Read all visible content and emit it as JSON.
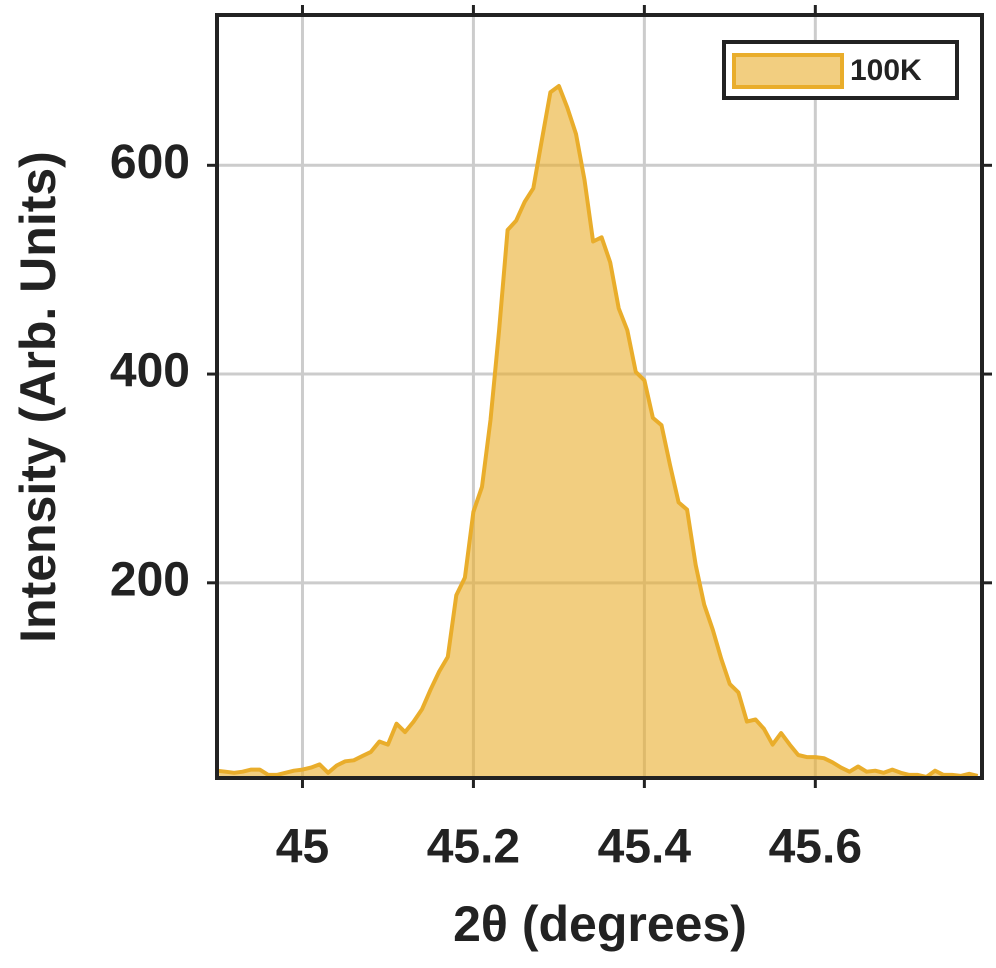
{
  "chart_data": {
    "type": "area",
    "x_label": "2θ (degrees)",
    "y_label": "Intensity (Arb. Units)",
    "x": [
      44.9,
      44.91,
      44.92,
      44.93,
      44.94,
      44.95,
      44.96,
      44.97,
      44.98,
      44.99,
      45.0,
      45.01,
      45.02,
      45.03,
      45.04,
      45.05,
      45.06,
      45.07,
      45.08,
      45.09,
      45.1,
      45.11,
      45.12,
      45.13,
      45.14,
      45.15,
      45.16,
      45.17,
      45.18,
      45.19,
      45.2,
      45.21,
      45.22,
      45.23,
      45.24,
      45.25,
      45.26,
      45.27,
      45.28,
      45.29,
      45.3,
      45.31,
      45.32,
      45.33,
      45.34,
      45.35,
      45.36,
      45.37,
      45.38,
      45.39,
      45.4,
      45.41,
      45.42,
      45.43,
      45.44,
      45.45,
      45.46,
      45.47,
      45.48,
      45.49,
      45.5,
      45.51,
      45.52,
      45.53,
      45.54,
      45.55,
      45.56,
      45.57,
      45.58,
      45.59,
      45.6,
      45.61,
      45.62,
      45.63,
      45.64,
      45.65,
      45.66,
      45.67,
      45.68,
      45.69,
      45.7,
      45.71,
      45.72,
      45.73,
      45.74,
      45.75,
      45.76,
      45.77,
      45.78,
      45.79
    ],
    "series": [
      {
        "name": "100K",
        "color": "#e9ad2b",
        "values": [
          20,
          19,
          18,
          19,
          21,
          21,
          16,
          16,
          18,
          20,
          21,
          23,
          26,
          18,
          25,
          29,
          30,
          34,
          38,
          48,
          45,
          65,
          57,
          67,
          79,
          98,
          115,
          129,
          188,
          205,
          268,
          292,
          356,
          442,
          538,
          547,
          565,
          578,
          624,
          670,
          676,
          655,
          630,
          586,
          527,
          531,
          507,
          463,
          442,
          402,
          394,
          358,
          351,
          313,
          277,
          270,
          217,
          179,
          155,
          127,
          103,
          95,
          67,
          69,
          60,
          45,
          56,
          45,
          35,
          33,
          33,
          32,
          28,
          23,
          19,
          24,
          19,
          20,
          18,
          21,
          18,
          16,
          16,
          14,
          20,
          16,
          16,
          15,
          17,
          15
        ]
      }
    ],
    "xlim": [
      44.9,
      45.795
    ],
    "ylim": [
      13,
      744
    ],
    "xticks": [
      45,
      45.2,
      45.4,
      45.6
    ],
    "yticks": [
      200,
      400,
      600
    ],
    "grid": true,
    "legend": "upper right"
  }
}
